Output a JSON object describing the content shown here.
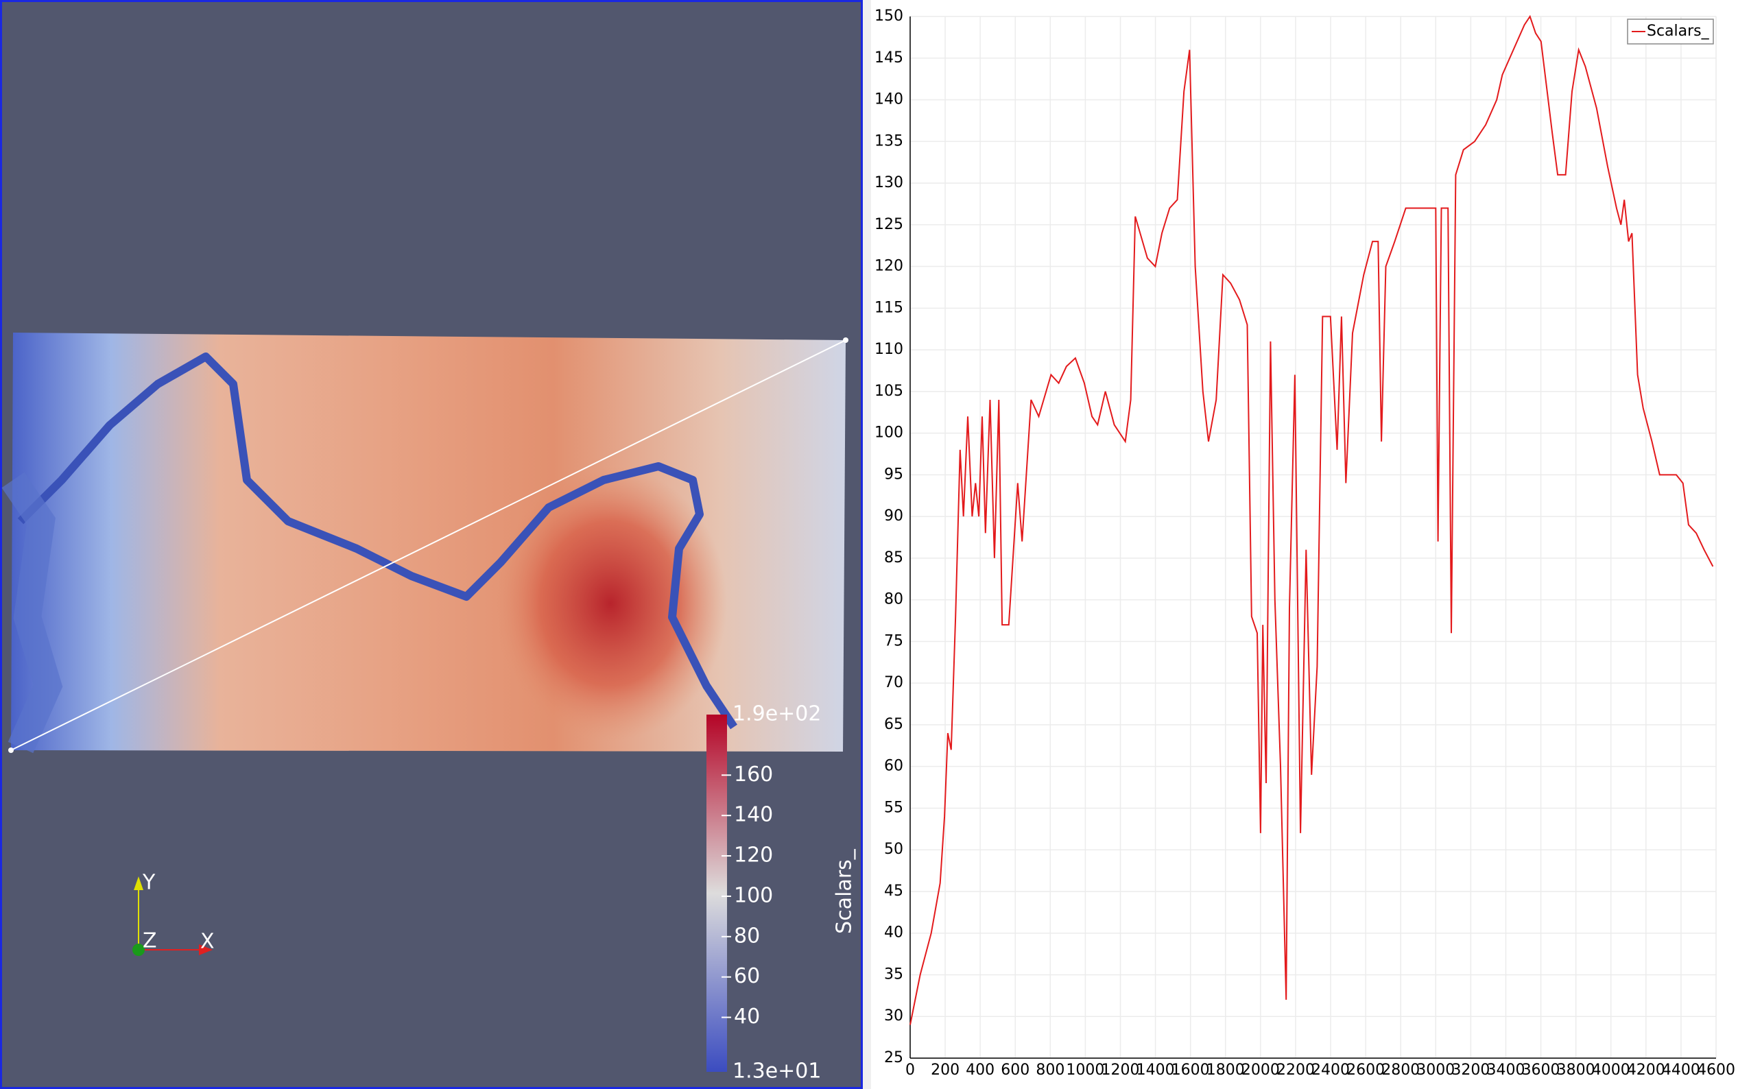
{
  "render_view": {
    "colorbar": {
      "title": "Scalars_",
      "range": [
        {
          "value": 13,
          "label": "1.3e+01"
        },
        {
          "value": 190,
          "label": "1.9e+02"
        }
      ],
      "ticks": [
        40,
        60,
        80,
        100,
        120,
        140,
        160
      ]
    },
    "orientation_axes": {
      "x": "X",
      "y": "Y",
      "z": "Z"
    }
  },
  "chart_data": {
    "type": "line",
    "legend": "top-right",
    "grid": true,
    "xlim": [
      0,
      4600
    ],
    "xticks": [
      0,
      200,
      400,
      600,
      800,
      1000,
      1200,
      1400,
      1600,
      1800,
      2000,
      2200,
      2400,
      2600,
      2800,
      3000,
      3200,
      3400,
      3600,
      3800,
      4000,
      4200,
      4400,
      4600
    ],
    "ylim": [
      25,
      150
    ],
    "yticks": [
      25,
      30,
      35,
      40,
      45,
      50,
      55,
      60,
      65,
      70,
      75,
      80,
      85,
      90,
      95,
      100,
      105,
      110,
      115,
      120,
      125,
      130,
      135,
      140,
      145,
      150
    ],
    "x": [
      0,
      57,
      120,
      171,
      196,
      215,
      234,
      259,
      285,
      304,
      329,
      354,
      373,
      392,
      411,
      430,
      456,
      481,
      506,
      525,
      563,
      614,
      639,
      690,
      734,
      804,
      848,
      892,
      943,
      994,
      1038,
      1070,
      1114,
      1165,
      1228,
      1259,
      1285,
      1354,
      1399,
      1437,
      1481,
      1525,
      1563,
      1595,
      1627,
      1671,
      1703,
      1747,
      1785,
      1829,
      1880,
      1924,
      1949,
      1981,
      2000,
      2013,
      2032,
      2057,
      2082,
      2114,
      2146,
      2165,
      2196,
      2228,
      2260,
      2291,
      2323,
      2354,
      2399,
      2437,
      2462,
      2487,
      2525,
      2589,
      2639,
      2671,
      2690,
      2715,
      2766,
      2829,
      2968,
      3000,
      3013,
      3032,
      3070,
      3089,
      3114,
      3158,
      3222,
      3285,
      3348,
      3380,
      3443,
      3506,
      3538,
      3570,
      3601,
      3665,
      3696,
      3741,
      3778,
      3816,
      3854,
      3918,
      3981,
      4032,
      4057,
      4076,
      4101,
      4120,
      4152,
      4184,
      4234,
      4278,
      4329,
      4373,
      4411,
      4443,
      4487,
      4532,
      4582
    ],
    "series": [
      {
        "name": "Scalars_",
        "color": "#e31a1c",
        "values": [
          29,
          35,
          40,
          46,
          54,
          64,
          62,
          78,
          98,
          90,
          102,
          90,
          94,
          90,
          102,
          88,
          104,
          85,
          104,
          77,
          77,
          94,
          87,
          104,
          102,
          107,
          106,
          108,
          109,
          106,
          102,
          101,
          105,
          101,
          99,
          104,
          126,
          121,
          120,
          124,
          127,
          128,
          141,
          146,
          120,
          105,
          99,
          104,
          119,
          118,
          116,
          113,
          78,
          76,
          52,
          77,
          58,
          111,
          80,
          60,
          32,
          79,
          107,
          52,
          86,
          59,
          72,
          114,
          114,
          98,
          114,
          94,
          112,
          119,
          123,
          123,
          99,
          120,
          123,
          127,
          127,
          127,
          87,
          127,
          127,
          76,
          131,
          134,
          135,
          137,
          140,
          143,
          146,
          149,
          150,
          148,
          147,
          136,
          131,
          131,
          141,
          146,
          144,
          139,
          132,
          127,
          125,
          128,
          123,
          124,
          107,
          103,
          99,
          95,
          95,
          95,
          94,
          89,
          88,
          86,
          84
        ]
      }
    ]
  }
}
